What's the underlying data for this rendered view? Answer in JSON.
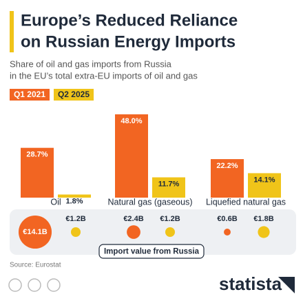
{
  "title": [
    "Europe’s Reduced Reliance",
    "on Russian Energy Imports"
  ],
  "subtitle": [
    "Share of oil and gas imports from Russia",
    "in the EU’s total extra-EU imports of oil and gas"
  ],
  "source": "Source: Eurostat",
  "brand": "statista",
  "chart_data": [
    {
      "type": "bar",
      "categories": [
        "Oil",
        "Natural gas (gaseous)",
        "Liquefied natural gas"
      ],
      "ylim": [
        0,
        50
      ],
      "series": [
        {
          "name": "Q1 2021",
          "color": "#f26522",
          "values": [
            28.7,
            48.0,
            22.2
          ],
          "value_labels": [
            "28.7%",
            "48.0%",
            "22.2%"
          ]
        },
        {
          "name": "Q2 2025",
          "color": "#f0c419",
          "values": [
            1.8,
            11.7,
            14.1
          ],
          "value_labels": [
            "1.8%",
            "11.7%",
            "14.1%"
          ]
        }
      ]
    },
    {
      "type": "bubble",
      "label": "Import value from Russia",
      "series": [
        {
          "color": "#f26522",
          "values": [
            14.1,
            2.4,
            0.6
          ],
          "value_labels": [
            "€14.1B",
            "€2.4B",
            "€0.6B"
          ]
        },
        {
          "color": "#f0c419",
          "values": [
            1.2,
            1.2,
            1.8
          ],
          "value_labels": [
            "€1.2B",
            "€1.2B",
            "€1.8B"
          ]
        }
      ]
    }
  ]
}
